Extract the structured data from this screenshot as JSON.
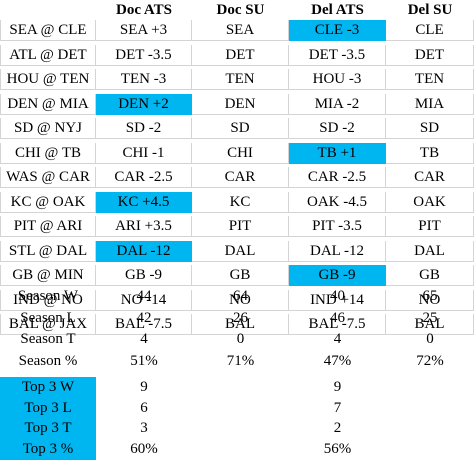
{
  "header": [
    "",
    "Doc ATS",
    "Doc SU",
    "Del ATS",
    "Del SU"
  ],
  "games": [
    {
      "game": "SEA @ CLE",
      "doc_ats": "SEA +3",
      "doc_su": "SEA",
      "del_ats": "CLE -3",
      "del_su": "CLE",
      "hl_doc": false,
      "hl_del": true
    },
    {
      "game": "ATL @ DET",
      "doc_ats": "DET -3.5",
      "doc_su": "DET",
      "del_ats": "DET -3.5",
      "del_su": "DET",
      "hl_doc": false,
      "hl_del": false
    },
    {
      "game": "HOU @ TEN",
      "doc_ats": "TEN -3",
      "doc_su": "TEN",
      "del_ats": "HOU -3",
      "del_su": "TEN",
      "hl_doc": false,
      "hl_del": false
    },
    {
      "game": "DEN @ MIA",
      "doc_ats": "DEN +2",
      "doc_su": "DEN",
      "del_ats": "MIA -2",
      "del_su": "MIA",
      "hl_doc": true,
      "hl_del": false
    },
    {
      "game": "SD @ NYJ",
      "doc_ats": "SD -2",
      "doc_su": "SD",
      "del_ats": "SD -2",
      "del_su": "SD",
      "hl_doc": false,
      "hl_del": false
    },
    {
      "game": "CHI @ TB",
      "doc_ats": "CHI -1",
      "doc_su": "CHI",
      "del_ats": "TB +1",
      "del_su": "TB",
      "hl_doc": false,
      "hl_del": true
    },
    {
      "game": "WAS @ CAR",
      "doc_ats": "CAR -2.5",
      "doc_su": "CAR",
      "del_ats": "CAR -2.5",
      "del_su": "CAR",
      "hl_doc": false,
      "hl_del": false
    },
    {
      "game": "KC @ OAK",
      "doc_ats": "KC +4.5",
      "doc_su": "KC",
      "del_ats": "OAK -4.5",
      "del_su": "OAK",
      "hl_doc": true,
      "hl_del": false
    },
    {
      "game": "PIT @ ARI",
      "doc_ats": "ARI +3.5",
      "doc_su": "PIT",
      "del_ats": "PIT -3.5",
      "del_su": "PIT",
      "hl_doc": false,
      "hl_del": false
    },
    {
      "game": "STL @ DAL",
      "doc_ats": "DAL -12",
      "doc_su": "DAL",
      "del_ats": "DAL -12",
      "del_su": "DAL",
      "hl_doc": true,
      "hl_del": false
    },
    {
      "game": "GB @ MIN",
      "doc_ats": "GB -9",
      "doc_su": "GB",
      "del_ats": "GB -9",
      "del_su": "GB",
      "hl_doc": false,
      "hl_del": true
    },
    {
      "game": "IND @ NO",
      "doc_ats": "NO -14",
      "doc_su": "NO",
      "del_ats": "IND +14",
      "del_su": "NO",
      "hl_doc": false,
      "hl_del": false
    },
    {
      "game": "BAL @ JAX",
      "doc_ats": "BAL -7.5",
      "doc_su": "BAL",
      "del_ats": "BAL -7.5",
      "del_su": "BAL",
      "hl_doc": false,
      "hl_del": false
    }
  ],
  "season": [
    {
      "label": "Season W",
      "doc_ats": "44",
      "doc_su": "64",
      "del_ats": "40",
      "del_su": "65"
    },
    {
      "label": "Season L",
      "doc_ats": "42",
      "doc_su": "26",
      "del_ats": "46",
      "del_su": "25"
    },
    {
      "label": "Season T",
      "doc_ats": "4",
      "doc_su": "0",
      "del_ats": "4",
      "del_su": "0"
    },
    {
      "label": "Season %",
      "doc_ats": "51%",
      "doc_su": "71%",
      "del_ats": "47%",
      "del_su": "72%"
    }
  ],
  "top3": [
    {
      "label": "Top 3 W",
      "doc_ats": "9",
      "del_ats": "9"
    },
    {
      "label": "Top 3 L",
      "doc_ats": "6",
      "del_ats": "7"
    },
    {
      "label": "Top 3 T",
      "doc_ats": "3",
      "del_ats": "2"
    },
    {
      "label": "Top 3 %",
      "doc_ats": "60%",
      "del_ats": "56%"
    }
  ],
  "colors": {
    "highlight": "#00b6f0",
    "gridline": "#d4d4d4"
  }
}
